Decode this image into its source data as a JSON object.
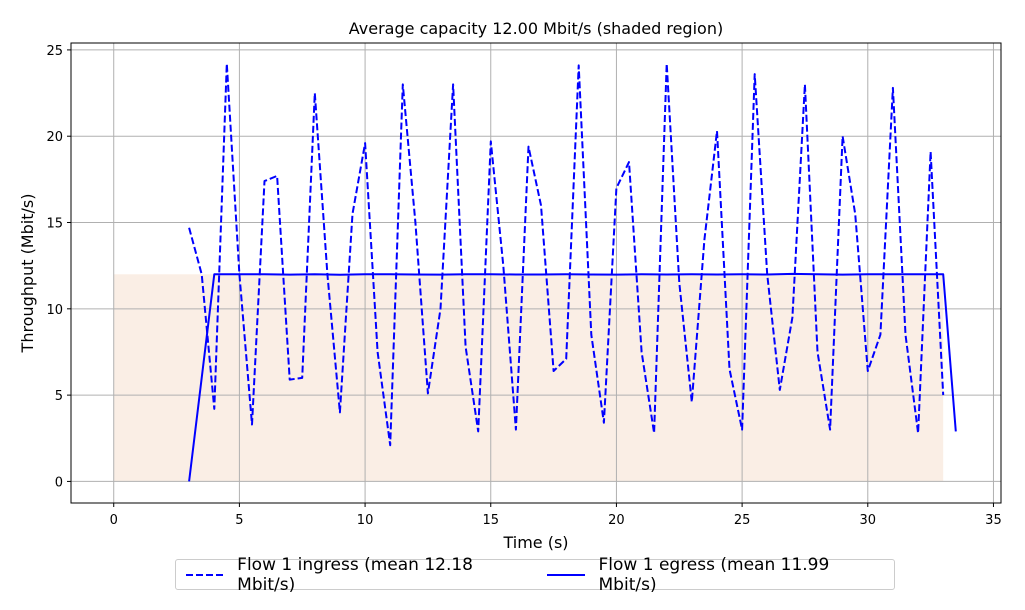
{
  "chart_data": {
    "type": "line",
    "title": "Average capacity 12.00 Mbit/s (shaded region)",
    "xlabel": "Time (s)",
    "ylabel": "Throughput (Mbit/s)",
    "xlim": [
      -1.7,
      35.3
    ],
    "ylim": [
      -1.25,
      25.4
    ],
    "xticks": [
      0,
      5,
      10,
      15,
      20,
      25,
      30,
      35
    ],
    "yticks": [
      0,
      5,
      10,
      15,
      20,
      25
    ],
    "grid": true,
    "legend_position": "bottom-center",
    "capacity_region": {
      "x": [
        0,
        33
      ],
      "y": 12.0,
      "color": "#faeee5"
    },
    "series": [
      {
        "name": "Flow 1 ingress (mean 12.18 Mbit/s)",
        "style": "dashed",
        "color": "#0000ff",
        "x": [
          3.0,
          3.5,
          4.0,
          4.5,
          5.0,
          5.5,
          6.0,
          6.5,
          7.0,
          7.5,
          8.0,
          8.5,
          9.0,
          9.5,
          10.0,
          10.5,
          11.0,
          11.5,
          12.0,
          12.5,
          13.0,
          13.5,
          14.0,
          14.5,
          15.0,
          15.5,
          16.0,
          16.5,
          17.0,
          17.5,
          18.0,
          18.5,
          19.0,
          19.5,
          20.0,
          20.5,
          21.0,
          21.5,
          22.0,
          22.5,
          23.0,
          23.5,
          24.0,
          24.5,
          25.0,
          25.5,
          26.0,
          26.5,
          27.0,
          27.5,
          28.0,
          28.5,
          29.0,
          29.5,
          30.0,
          30.5,
          31.0,
          31.5,
          32.0,
          32.5,
          33.0
        ],
        "y": [
          14.7,
          12.0,
          4.2,
          24.2,
          12.0,
          3.3,
          17.4,
          17.7,
          5.9,
          6.0,
          22.5,
          12.0,
          4.0,
          15.5,
          19.6,
          7.5,
          2.1,
          23.0,
          15.0,
          5.1,
          10.0,
          23.0,
          7.8,
          2.9,
          19.7,
          12.5,
          3.0,
          19.4,
          16.0,
          6.4,
          7.1,
          24.1,
          8.5,
          3.4,
          17.0,
          18.5,
          7.5,
          2.8,
          24.2,
          11.5,
          4.6,
          14.0,
          20.3,
          6.5,
          3.0,
          23.6,
          12.0,
          5.3,
          9.5,
          23.0,
          7.5,
          3.0,
          20.0,
          15.5,
          6.4,
          8.5,
          22.8,
          8.5,
          2.8,
          19.1,
          5.0
        ]
      },
      {
        "name": "Flow 1 egress (mean 11.99 Mbit/s)",
        "style": "solid",
        "color": "#0000ff",
        "x": [
          3.0,
          3.5,
          4.0,
          5.0,
          6.0,
          7.0,
          8.0,
          9.0,
          10.0,
          11.0,
          12.0,
          13.0,
          14.0,
          15.0,
          16.0,
          17.0,
          18.0,
          19.0,
          20.0,
          21.0,
          22.0,
          23.0,
          24.0,
          25.0,
          26.0,
          27.0,
          28.0,
          29.0,
          30.0,
          31.0,
          32.0,
          33.0,
          33.5
        ],
        "y": [
          0.0,
          6.0,
          12.0,
          12.0,
          12.0,
          11.98,
          12.0,
          11.97,
          12.0,
          12.0,
          11.99,
          11.98,
          12.0,
          12.0,
          11.99,
          11.99,
          12.0,
          11.99,
          11.98,
          12.0,
          11.99,
          12.0,
          11.99,
          12.0,
          11.99,
          12.02,
          12.0,
          11.98,
          12.0,
          12.0,
          12.0,
          12.0,
          2.9
        ]
      }
    ]
  }
}
